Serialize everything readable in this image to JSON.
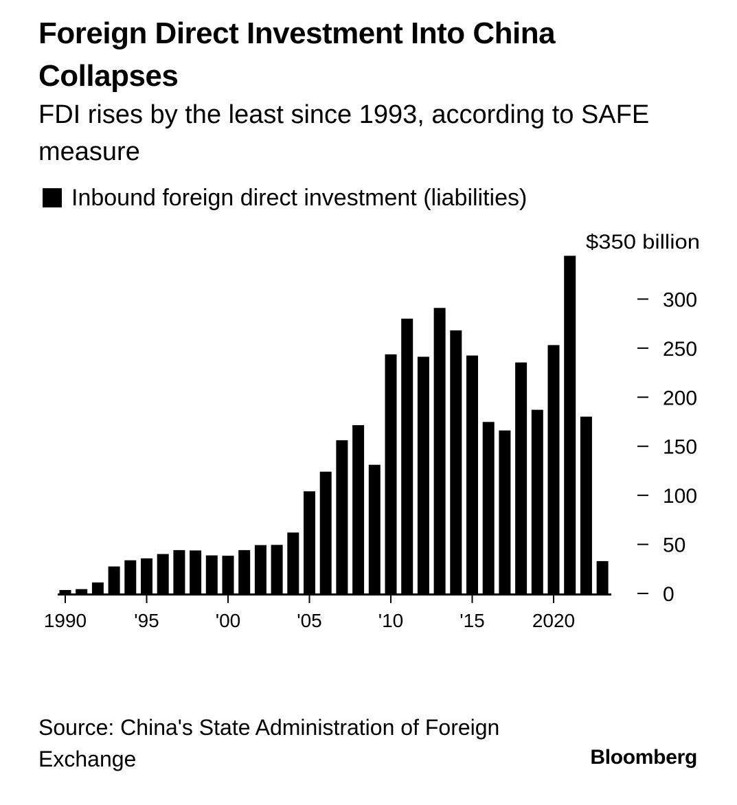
{
  "header": {
    "title": "Foreign Direct Investment Into China Collapses",
    "subtitle": "FDI rises by the least since 1993, according to SAFE measure"
  },
  "legend": {
    "label": "Inbound foreign direct investment (liabilities)",
    "color": "#000000"
  },
  "footer": {
    "source": "Source: China's State Administration of Foreign Exchange",
    "brand": "Bloomberg"
  },
  "chart_data": {
    "type": "bar",
    "title": "Foreign Direct Investment Into China Collapses",
    "subtitle": "FDI rises by the least since 1993, according to SAFE measure",
    "xlabel": "",
    "ylabel": "",
    "y_unit_label": "$350 billion",
    "ylim": [
      0,
      350
    ],
    "y_ticks": [
      "0",
      "50",
      "100",
      "150",
      "200",
      "250",
      "300"
    ],
    "x_tick_labels": [
      {
        "year": 1990,
        "label": "1990"
      },
      {
        "year": 1995,
        "label": "'95"
      },
      {
        "year": 2000,
        "label": "'00"
      },
      {
        "year": 2005,
        "label": "'05"
      },
      {
        "year": 2010,
        "label": "'10"
      },
      {
        "year": 2015,
        "label": "'15"
      },
      {
        "year": 2020,
        "label": "2020"
      }
    ],
    "grid": false,
    "legend_position": "top-left",
    "y_axis_position": "right",
    "bar_color": "#000000",
    "series": [
      {
        "name": "Inbound foreign direct investment (liabilities)",
        "x": [
          1990,
          1991,
          1992,
          1993,
          1994,
          1995,
          1996,
          1997,
          1998,
          1999,
          2000,
          2001,
          2002,
          2003,
          2004,
          2005,
          2006,
          2007,
          2008,
          2009,
          2010,
          2011,
          2012,
          2013,
          2014,
          2015,
          2016,
          2017,
          2018,
          2019,
          2020,
          2021,
          2022,
          2023
        ],
        "values": [
          3.5,
          4.4,
          11.2,
          27.5,
          33.8,
          35.8,
          40.2,
          44.2,
          43.8,
          38.8,
          38.4,
          44.2,
          49.3,
          49.5,
          62.1,
          104.1,
          124.1,
          156.2,
          171.5,
          131.1,
          243.7,
          280.1,
          241.2,
          291.0,
          268.1,
          242.5,
          174.8,
          166.1,
          235.4,
          187.2,
          253.1,
          344.1,
          180.2,
          33.0
        ]
      }
    ]
  }
}
